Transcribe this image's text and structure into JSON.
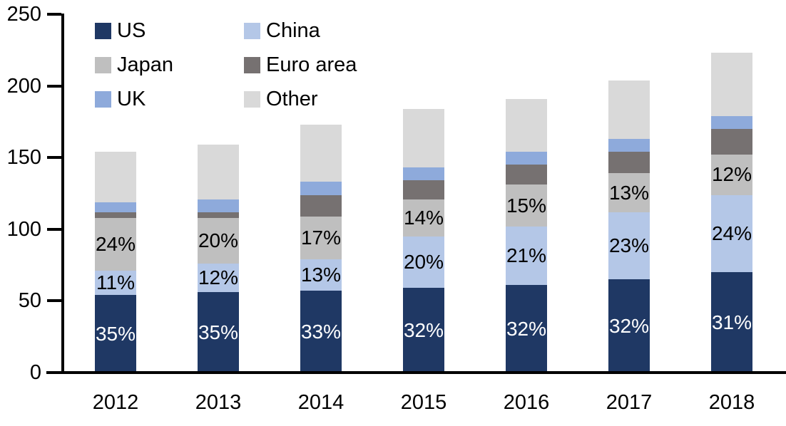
{
  "chart_data": {
    "type": "bar",
    "stacked": true,
    "title": "",
    "xlabel": "",
    "ylabel": "",
    "categories": [
      "2012",
      "2013",
      "2014",
      "2015",
      "2016",
      "2017",
      "2018"
    ],
    "series": [
      {
        "name": "US",
        "color": "#1f3864",
        "values": [
          54,
          56,
          57,
          59,
          61,
          65,
          70
        ],
        "labels": [
          "35%",
          "35%",
          "33%",
          "32%",
          "32%",
          "32%",
          "31%"
        ],
        "label_color": "#ffffff"
      },
      {
        "name": "China",
        "color": "#b4c7e7",
        "values": [
          17,
          20,
          22,
          36,
          41,
          47,
          54
        ],
        "labels": [
          "11%",
          "12%",
          "13%",
          "20%",
          "21%",
          "23%",
          "24%"
        ],
        "label_color": "#000000"
      },
      {
        "name": "Japan",
        "color": "#bfbfbf",
        "values": [
          37,
          32,
          30,
          26,
          29,
          27,
          28
        ],
        "labels": [
          "24%",
          "20%",
          "17%",
          "14%",
          "15%",
          "13%",
          "12%"
        ],
        "label_color": "#000000"
      },
      {
        "name": "Euro area",
        "color": "#767171",
        "values": [
          4,
          4,
          15,
          13,
          14,
          15,
          18
        ],
        "labels": null,
        "label_color": null
      },
      {
        "name": "UK",
        "color": "#8eaadb",
        "values": [
          7,
          9,
          9,
          9,
          9,
          9,
          9
        ],
        "labels": null,
        "label_color": null
      },
      {
        "name": "Other",
        "color": "#d9d9d9",
        "values": [
          35,
          38,
          40,
          41,
          37,
          41,
          44
        ],
        "labels": null,
        "label_color": null
      }
    ],
    "totals": [
      154,
      159,
      173,
      184,
      191,
      204,
      223
    ],
    "ylim": [
      0,
      250
    ],
    "yticks": [
      0,
      50,
      100,
      150,
      200,
      250
    ],
    "grid": false,
    "legend_position": "top-left-inside",
    "legend_columns": 2,
    "axis_color": "#000000"
  }
}
